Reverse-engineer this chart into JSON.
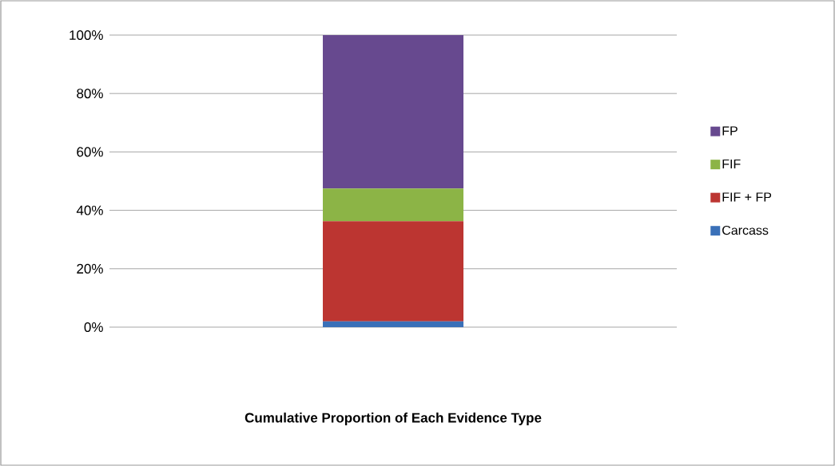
{
  "chart_data": {
    "type": "bar",
    "stacked": true,
    "annotations": [
      "Cumulative Proportion of Each Evidence Type"
    ],
    "categories": [
      null
    ],
    "series": [
      {
        "name": "Carcass",
        "color": "#3a70b8",
        "values": [
          2
        ]
      },
      {
        "name": "FIF + FP",
        "color": "#bc3531",
        "values": [
          34.3
        ]
      },
      {
        "name": "FIF",
        "color": "#8cb446",
        "values": [
          11.2
        ]
      },
      {
        "name": "FP",
        "color": "#67498f",
        "values": [
          52.5
        ]
      }
    ],
    "ylim": [
      0,
      100
    ],
    "yticks": [
      {
        "value": 0,
        "label": "0%"
      },
      {
        "value": 20,
        "label": "20%"
      },
      {
        "value": 40,
        "label": "40%"
      },
      {
        "value": 60,
        "label": "60%"
      },
      {
        "value": 80,
        "label": "80%"
      },
      {
        "value": 100,
        "label": "100%"
      }
    ],
    "grid": "y",
    "legend": "right"
  }
}
